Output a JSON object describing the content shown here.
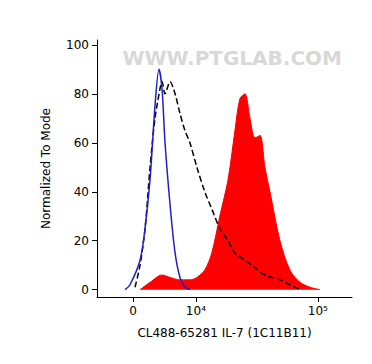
{
  "chart_data": {
    "type": "line",
    "xlabel": "CL488-65281 IL-7 (1C11B11)",
    "ylabel": "Normalized To Mode",
    "annotations": [
      "WWW.PTGLAB.COM"
    ],
    "xlim": [
      -5000,
      185000
    ],
    "xticks": [
      0,
      {
        "value": 10000,
        "label": "10⁴"
      },
      {
        "value": 100000,
        "label": "10⁵"
      }
    ],
    "ylim": [
      -3,
      102
    ],
    "yticks": [
      0,
      20,
      40,
      60,
      80,
      100
    ],
    "grid": false,
    "series": [
      {
        "type": "area",
        "color": "#ff0000",
        "line_style": "solid",
        "x": [
          910,
          2240,
          3930,
          5150,
          6830,
          8730,
          10220,
          12100,
          13970,
          16400,
          19250,
          21950,
          24100,
          26500,
          29100,
          31900,
          35000,
          38300,
          42000,
          50400,
          60400,
          72400,
          86800,
          103900
        ],
        "values": [
          0,
          3,
          6,
          5,
          4,
          4,
          5,
          8,
          15,
          30,
          45,
          65,
          78,
          80,
          70,
          62,
          63,
          50,
          40,
          20,
          8,
          3,
          1,
          0
        ]
      },
      {
        "type": "line",
        "color": "#000000",
        "line_style": "dashed",
        "x": [
          260,
          910,
          1570,
          2240,
          2920,
          3700,
          3930,
          4380,
          5150,
          5980,
          6830,
          7750,
          8730,
          10220,
          12100,
          13970,
          16400,
          19250,
          21950,
          26500,
          31900,
          38300,
          50400,
          60400,
          72400
        ],
        "values": [
          1,
          10,
          25,
          50,
          70,
          83,
          85,
          80,
          85,
          80,
          72,
          65,
          60,
          50,
          40,
          33,
          25,
          20,
          15,
          12,
          9,
          6,
          4,
          2,
          0
        ]
      },
      {
        "type": "line",
        "color": "#1f1fc8",
        "line_style": "solid",
        "x": [
          -1040,
          -390,
          910,
          1570,
          2240,
          2920,
          3490,
          3930,
          4380,
          5150,
          5980,
          6830,
          7750,
          8730
        ],
        "values": [
          0,
          2,
          12,
          25,
          45,
          75,
          90,
          82,
          60,
          35,
          15,
          5,
          1,
          0
        ]
      }
    ]
  }
}
